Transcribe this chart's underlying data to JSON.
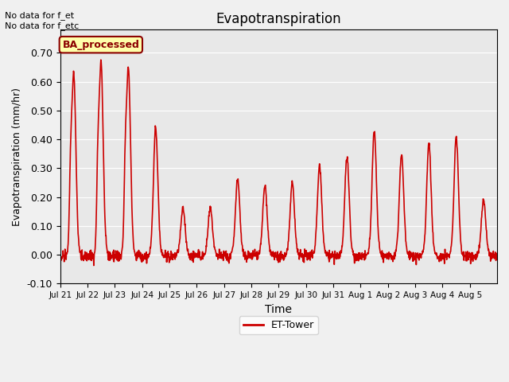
{
  "title": "Evapotranspiration",
  "ylabel": "Evapotranspiration (mm/hr)",
  "xlabel": "Time",
  "ylim": [
    -0.1,
    0.78
  ],
  "yticks": [
    -0.1,
    0.0,
    0.1,
    0.2,
    0.3,
    0.4,
    0.5,
    0.6,
    0.7
  ],
  "background_color": "#e8e8e8",
  "fig_background": "#f0f0f0",
  "line_color": "#cc0000",
  "line_width": 1.2,
  "annotation_text": "No data for f_et\nNo data for f_etc",
  "box_label": "BA_processed",
  "legend_label": "ET-Tower",
  "tick_labels": [
    "Jul 21",
    "Jul 22",
    "Jul 23",
    "Jul 24",
    "Jul 25",
    "Jul 26",
    "Jul 27",
    "Jul 28",
    "Jul 29",
    "Jul 30",
    "Jul 31",
    "Aug 1",
    "Aug 2",
    "Aug 3",
    "Aug 4",
    "Aug 5"
  ],
  "num_days": 16,
  "day_peaks": [
    0.63,
    0.67,
    0.65,
    0.44,
    0.16,
    0.16,
    0.26,
    0.24,
    0.25,
    0.31,
    0.34,
    0.43,
    0.35,
    0.39,
    0.41,
    0.19
  ]
}
